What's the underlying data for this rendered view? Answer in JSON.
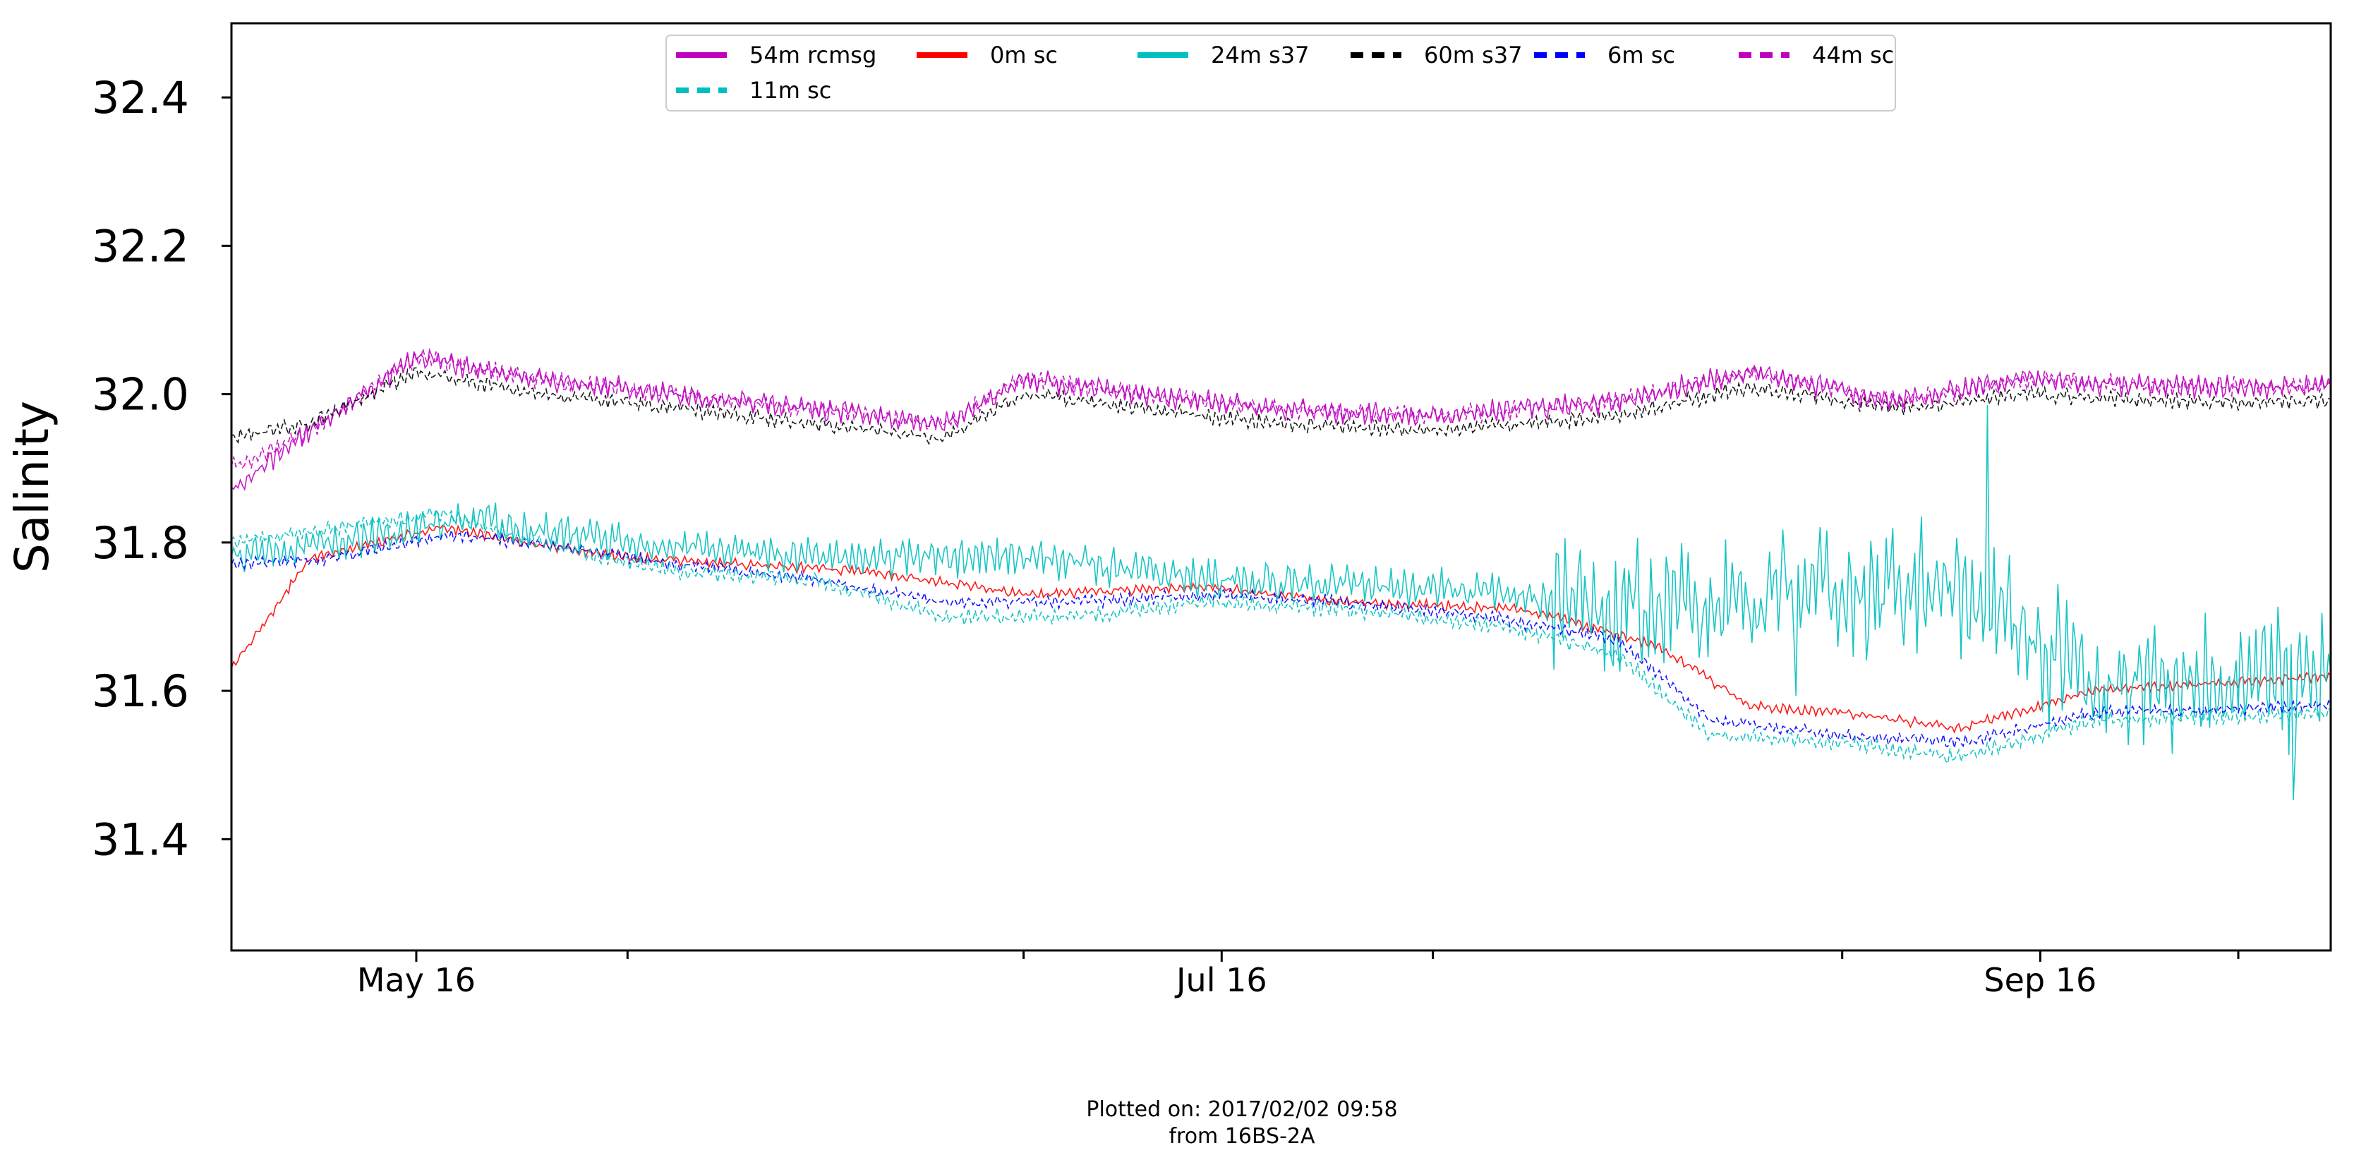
{
  "footer": {
    "plotted_on": "Plotted on: 2017/02/02 09:58",
    "source": "from 16BS-2A"
  },
  "chart_data": {
    "type": "line",
    "title": "",
    "xlabel": "",
    "ylabel": "Salinity",
    "xlim": [
      "2016-05-02",
      "2016-10-08"
    ],
    "ylim": [
      31.25,
      32.5
    ],
    "yticks": [
      31.4,
      31.6,
      31.8,
      32.0,
      32.2,
      32.4
    ],
    "ytick_labels": [
      "31.4",
      "31.6",
      "31.8",
      "32.0",
      "32.2",
      "32.4"
    ],
    "xticks_major": [
      {
        "date": "2016-05-16",
        "label": "May 16"
      },
      {
        "date": "2016-07-16",
        "label": "Jul 16"
      },
      {
        "date": "2016-09-16",
        "label": "Sep 16"
      }
    ],
    "xticks_minor": [
      "2016-06-01",
      "2016-07-01",
      "2016-08-01",
      "2016-09-01",
      "2016-10-01"
    ],
    "grid": false,
    "legend": {
      "placement": "top-center",
      "columns": 6
    },
    "series": [
      {
        "name": "54m rcmsg",
        "color": "#bf00bf",
        "dash": "solid",
        "x": [
          "2016-05-02",
          "2016-05-08",
          "2016-05-16",
          "2016-05-25",
          "2016-06-05",
          "2016-06-15",
          "2016-06-25",
          "2016-07-01",
          "2016-07-10",
          "2016-07-20",
          "2016-08-01",
          "2016-08-15",
          "2016-08-25",
          "2016-09-05",
          "2016-09-15",
          "2016-09-25",
          "2016-10-08"
        ],
        "y": [
          31.87,
          31.95,
          32.05,
          32.02,
          32.0,
          31.98,
          31.96,
          32.02,
          32.0,
          31.98,
          31.97,
          31.99,
          32.03,
          31.99,
          32.02,
          32.01,
          32.01
        ]
      },
      {
        "name": "0m sc",
        "color": "#ff0000",
        "dash": "solid",
        "x": [
          "2016-05-02",
          "2016-05-08",
          "2016-05-18",
          "2016-05-24",
          "2016-06-01",
          "2016-06-10",
          "2016-06-20",
          "2016-07-01",
          "2016-07-15",
          "2016-07-25",
          "2016-08-08",
          "2016-08-18",
          "2016-08-25",
          "2016-09-01",
          "2016-09-10",
          "2016-09-20",
          "2016-10-08"
        ],
        "y": [
          31.63,
          31.78,
          31.82,
          31.8,
          31.78,
          31.77,
          31.76,
          31.73,
          31.74,
          31.72,
          31.71,
          31.66,
          31.58,
          31.57,
          31.55,
          31.6,
          31.62
        ]
      },
      {
        "name": "24m s37",
        "color": "#00bfbf",
        "dash": "solid",
        "x": [
          "2016-05-02",
          "2016-05-10",
          "2016-05-20",
          "2016-06-01",
          "2016-06-15",
          "2016-07-01",
          "2016-07-15",
          "2016-08-01",
          "2016-08-10",
          "2016-08-20",
          "2016-08-30",
          "2016-09-10",
          "2016-09-20",
          "2016-10-08"
        ],
        "y": [
          31.78,
          31.8,
          31.83,
          31.8,
          31.78,
          31.78,
          31.75,
          31.74,
          31.72,
          31.71,
          31.73,
          31.74,
          31.6,
          31.62
        ]
      },
      {
        "name": "60m s37",
        "color": "#000000",
        "dash": "dashed",
        "x": [
          "2016-05-02",
          "2016-05-08",
          "2016-05-16",
          "2016-05-25",
          "2016-06-05",
          "2016-06-15",
          "2016-06-25",
          "2016-07-01",
          "2016-07-10",
          "2016-07-20",
          "2016-08-01",
          "2016-08-15",
          "2016-08-25",
          "2016-09-05",
          "2016-09-15",
          "2016-09-25",
          "2016-10-08"
        ],
        "y": [
          31.94,
          31.96,
          32.03,
          32.0,
          31.98,
          31.96,
          31.94,
          32.0,
          31.98,
          31.96,
          31.95,
          31.97,
          32.01,
          31.98,
          32.0,
          31.99,
          31.99
        ]
      },
      {
        "name": "6m sc",
        "color": "#0000ff",
        "dash": "dashed",
        "x": [
          "2016-05-02",
          "2016-05-10",
          "2016-05-18",
          "2016-05-25",
          "2016-06-05",
          "2016-06-15",
          "2016-06-25",
          "2016-07-05",
          "2016-07-15",
          "2016-07-25",
          "2016-08-05",
          "2016-08-15",
          "2016-08-22",
          "2016-09-01",
          "2016-09-10",
          "2016-09-20",
          "2016-10-08"
        ],
        "y": [
          31.77,
          31.78,
          31.81,
          31.8,
          31.77,
          31.75,
          31.72,
          31.72,
          31.73,
          31.72,
          31.7,
          31.67,
          31.56,
          31.54,
          31.53,
          31.57,
          31.58
        ]
      },
      {
        "name": "44m sc",
        "color": "#bf00bf",
        "dash": "dashed",
        "x": [
          "2016-05-02",
          "2016-05-08",
          "2016-05-16",
          "2016-05-25",
          "2016-06-05",
          "2016-06-15",
          "2016-06-25",
          "2016-07-01",
          "2016-07-10",
          "2016-07-20",
          "2016-08-01",
          "2016-08-15",
          "2016-08-25",
          "2016-09-05",
          "2016-09-15",
          "2016-09-25",
          "2016-10-08"
        ],
        "y": [
          31.9,
          31.95,
          32.05,
          32.02,
          32.0,
          31.98,
          31.96,
          32.02,
          32.0,
          31.98,
          31.97,
          31.99,
          32.03,
          31.99,
          32.02,
          32.01,
          32.01
        ]
      },
      {
        "name": "11m sc",
        "color": "#00bfbf",
        "dash": "dashed",
        "x": [
          "2016-05-02",
          "2016-05-10",
          "2016-05-18",
          "2016-05-25",
          "2016-06-05",
          "2016-06-15",
          "2016-06-25",
          "2016-07-05",
          "2016-07-15",
          "2016-07-25",
          "2016-08-05",
          "2016-08-15",
          "2016-08-22",
          "2016-09-01",
          "2016-09-10",
          "2016-09-20",
          "2016-10-08"
        ],
        "y": [
          31.8,
          31.82,
          31.84,
          31.8,
          31.76,
          31.75,
          31.7,
          31.7,
          31.72,
          31.71,
          31.69,
          31.65,
          31.54,
          31.53,
          31.51,
          31.56,
          31.57
        ]
      }
    ]
  }
}
